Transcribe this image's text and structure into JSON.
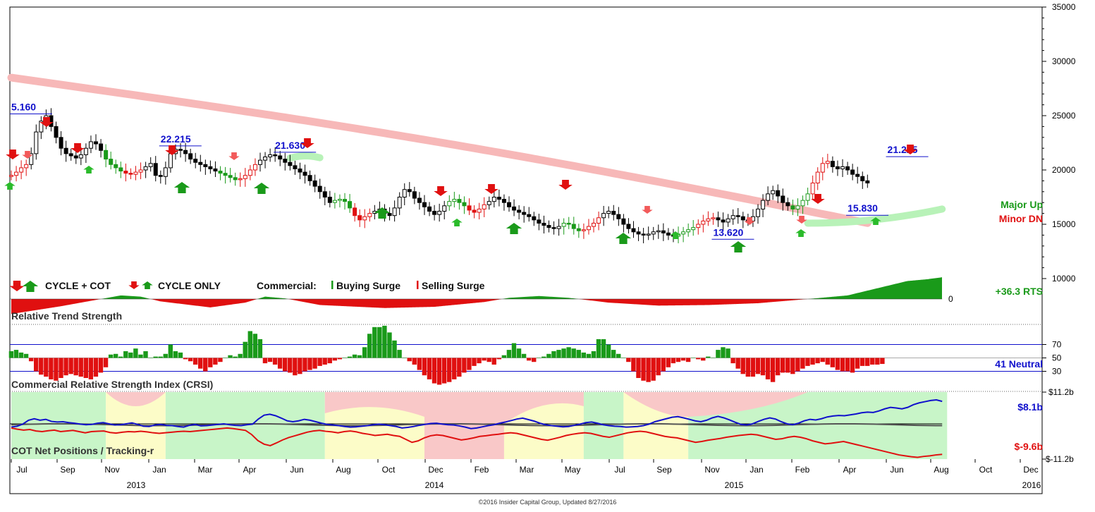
{
  "legend": {
    "cycle_cot": "CYCLE + COT",
    "cycle_only": "CYCLE ONLY",
    "commercial": "Commercial:",
    "buying_surge": "Buying Surge",
    "selling_surge": "Selling Surge"
  },
  "panels": {
    "rts_title": "Relative Trend Strength",
    "crsi_title": "Commercial Relative Strength Index (CRSI)",
    "cot_title": "COT Net Positions / Tracking-r"
  },
  "trend": {
    "major": "Major Up",
    "minor": "Minor DN"
  },
  "readouts": {
    "rts": "+36.3 RTS",
    "crsi": "41 Neutral",
    "cot_commercial": "$8.1b",
    "cot_large": "$-9.6b"
  },
  "footer": "©2016 Insider Capital Group, Updated 8/27/2016",
  "colors": {
    "up_green": "#1a9a1a",
    "down_red": "#e01010",
    "blue": "#1010cc",
    "ma_pink": "#f7b8b8",
    "ma_green": "#b8f2b8",
    "zone_green": "#c8f5c8",
    "zone_yellow": "#fcfcc8",
    "zone_pink": "#f9c8c8"
  },
  "chart_data": {
    "type": "candlestick",
    "y_axis": {
      "ticks": [
        10000,
        15000,
        20000,
        25000,
        30000,
        35000
      ],
      "range": [
        8000,
        35000
      ]
    },
    "x_axis": {
      "months": [
        "Jul",
        "Sep",
        "Nov",
        "Jan",
        "Mar",
        "Apr",
        "Jun",
        "Aug",
        "Oct",
        "Dec",
        "Feb",
        "Mar",
        "May",
        "Jul",
        "Sep",
        "Nov",
        "Jan",
        "Feb",
        "Apr",
        "Jun",
        "Aug",
        "Oct",
        "Dec"
      ],
      "years": [
        "2013",
        "2014",
        "2015",
        "2016"
      ]
    },
    "price_annotations": [
      {
        "label": "5.160",
        "week": 0,
        "value": 25160
      },
      {
        "label": "22.215",
        "week": 30,
        "value": 22215
      },
      {
        "label": "21.630",
        "week": 53,
        "value": 21630
      },
      {
        "label": "13.620",
        "week": 141,
        "value": 13620
      },
      {
        "label": "15.830",
        "week": 168,
        "value": 15830
      },
      {
        "label": "21.225",
        "week": 176,
        "value": 21225
      }
    ],
    "weekly_close": [
      19500,
      19800,
      20200,
      20500,
      21500,
      23500,
      24500,
      25000,
      24000,
      23000,
      22000,
      21500,
      21300,
      21100,
      21400,
      22000,
      22600,
      22400,
      21800,
      21000,
      20500,
      20200,
      19900,
      19700,
      19600,
      19800,
      20000,
      20300,
      20600,
      19500,
      19400,
      20200,
      21500,
      21900,
      21800,
      21500,
      21000,
      20700,
      20500,
      20300,
      20100,
      19900,
      19700,
      19500,
      19300,
      19100,
      19200,
      19500,
      20000,
      20500,
      20900,
      21200,
      21400,
      21300,
      21000,
      20700,
      20400,
      20100,
      19800,
      19500,
      19000,
      18500,
      18000,
      17500,
      17000,
      17200,
      17300,
      17100,
      16500,
      15800,
      15400,
      15700,
      16000,
      16200,
      16400,
      16000,
      15800,
      16500,
      17500,
      18200,
      18000,
      17400,
      17000,
      16600,
      16200,
      15900,
      16200,
      16700,
      17100,
      17300,
      17000,
      16700,
      16300,
      16100,
      16400,
      16800,
      17100,
      17500,
      17300,
      17000,
      16600,
      16300,
      16100,
      15900,
      15700,
      15400,
      15100,
      14900,
      14700,
      14600,
      14800,
      15100,
      15000,
      14600,
      14400,
      14500,
      14800,
      15100,
      15600,
      16000,
      16200,
      15900,
      15500,
      15000,
      14600,
      14300,
      14100,
      14000,
      14100,
      14300,
      14400,
      14200,
      14000,
      13900,
      14100,
      14300,
      14500,
      14700,
      15000,
      15300,
      15500,
      15600,
      15400,
      15200,
      15500,
      15800,
      15700,
      15400,
      15300,
      15700,
      16400,
      17200,
      17800,
      18100,
      17600,
      17000,
      16700,
      16400,
      16700,
      17200,
      17800,
      18800,
      19800,
      20600,
      20800,
      20300,
      20100,
      20300,
      20000,
      19600,
      19400,
      19000,
      18800
    ],
    "rts": [
      {
        "week": 0,
        "value": -25
      },
      {
        "week": 10,
        "value": -12
      },
      {
        "week": 18,
        "value": 0
      },
      {
        "week": 22,
        "value": 6
      },
      {
        "week": 26,
        "value": 4
      },
      {
        "week": 30,
        "value": -4
      },
      {
        "week": 40,
        "value": -14
      },
      {
        "week": 47,
        "value": -6
      },
      {
        "week": 51,
        "value": 4
      },
      {
        "week": 55,
        "value": 1
      },
      {
        "week": 62,
        "value": -10
      },
      {
        "week": 75,
        "value": -15
      },
      {
        "week": 85,
        "value": -13
      },
      {
        "week": 95,
        "value": -5
      },
      {
        "week": 100,
        "value": 2
      },
      {
        "week": 106,
        "value": 5
      },
      {
        "week": 112,
        "value": 2
      },
      {
        "week": 120,
        "value": -6
      },
      {
        "week": 130,
        "value": -11
      },
      {
        "week": 140,
        "value": -10
      },
      {
        "week": 150,
        "value": -7
      },
      {
        "week": 160,
        "value": 0
      },
      {
        "week": 168,
        "value": 6
      },
      {
        "week": 175,
        "value": 20
      },
      {
        "week": 180,
        "value": 30
      },
      {
        "week": 184,
        "value": 33
      },
      {
        "week": 187,
        "value": 36.3
      }
    ],
    "crsi": [
      60,
      62,
      58,
      56,
      45,
      30,
      25,
      22,
      18,
      16,
      20,
      24,
      26,
      24,
      22,
      20,
      18,
      22,
      28,
      36,
      55,
      56,
      52,
      60,
      58,
      64,
      55,
      60,
      50,
      52,
      52,
      56,
      70,
      60,
      58,
      48,
      45,
      40,
      34,
      30,
      36,
      40,
      44,
      50,
      54,
      52,
      56,
      74,
      90,
      86,
      78,
      42,
      44,
      40,
      34,
      30,
      28,
      24,
      26,
      30,
      32,
      34,
      38,
      40,
      42,
      46,
      48,
      50,
      52,
      55,
      54,
      66,
      86,
      96,
      96,
      98,
      88,
      76,
      62,
      50,
      45,
      40,
      32,
      24,
      18,
      12,
      10,
      12,
      14,
      18,
      22,
      28,
      32,
      38,
      42,
      46,
      44,
      40,
      48,
      54,
      62,
      72,
      64,
      56,
      46,
      44,
      50,
      52,
      56,
      60,
      62,
      64,
      66,
      64,
      62,
      58,
      56,
      60,
      78,
      78,
      70,
      62,
      56,
      50,
      44,
      30,
      20,
      16,
      14,
      16,
      24,
      30,
      36,
      42,
      44,
      46,
      44,
      50,
      48,
      46,
      52,
      50,
      62,
      66,
      64,
      42,
      34,
      26,
      22,
      22,
      26,
      24,
      18,
      14,
      24,
      28,
      28,
      26,
      30,
      34,
      38,
      40,
      42,
      44,
      40,
      36,
      32,
      30,
      30,
      28,
      34,
      38,
      38,
      40,
      40,
      41
    ],
    "crsi_levels": [
      70,
      50,
      30
    ],
    "cot_axis": {
      "top": "$11.2b",
      "bottom": "$-11.2b"
    },
    "cot_commercial": [
      -0.5,
      -0.2,
      0.5,
      1.8,
      2.3,
      1.8,
      2.1,
      1.4,
      1.2,
      1.3,
      1.0,
      0.8,
      0.5,
      0.3,
      0.4,
      0.8,
      1.0,
      0.6,
      0.2,
      0.3,
      0.6,
      0.9,
      0.4,
      -0.2,
      -0.3,
      0.2,
      0.4,
      0.1,
      0.0,
      -0.3,
      -0.5,
      0.1,
      0.4,
      -0.1,
      0.0,
      0.2,
      0.4,
      0.6,
      0.3,
      0.1,
      0.0,
      0.3,
      0.5,
      2.2,
      3.5,
      3.8,
      3.3,
      2.5,
      1.6,
      1.3,
      1.6,
      2.1,
      1.8,
      1.3,
      0.8,
      0.4,
      0.2,
      0.0,
      -0.3,
      -0.5,
      -0.4,
      -0.2,
      0.0,
      0.3,
      0.5,
      0.3,
      0.0,
      -0.3,
      -0.8,
      -0.6,
      -0.3,
      0.1,
      0.4,
      0.7,
      0.8,
      0.5,
      0.3,
      0.2,
      -0.1,
      -0.5,
      -1.0,
      -0.8,
      -0.4,
      0.0,
      0.3,
      0.8,
      1.2,
      1.7,
      2.2,
      2.5,
      2.0,
      1.5,
      0.8,
      0.3,
      0.0,
      -0.2,
      -0.4,
      -0.3,
      0.1,
      0.5,
      1.0,
      1.2,
      0.8,
      0.3,
      0.0,
      -0.2,
      -0.3,
      -0.5,
      -0.4,
      -0.3,
      0.0,
      0.5,
      1.3,
      1.8,
      2.3,
      2.8,
      3.0,
      2.6,
      2.1,
      1.6,
      1.3,
      1.8,
      2.6,
      3.1,
      2.6,
      1.9,
      1.1,
      0.4,
      0.2,
      0.6,
      1.4,
      2.1,
      2.6,
      2.2,
      1.3,
      0.6,
      0.3,
      0.8,
      1.6,
      2.1,
      1.9,
      2.3,
      2.9,
      3.2,
      3.4,
      3.3,
      3.6,
      3.9,
      4.3,
      4.5,
      4.4,
      4.9,
      5.6,
      6.1,
      5.9,
      5.6,
      6.1,
      7.0,
      7.6,
      8.0,
      8.4,
      8.6,
      8.1
    ],
    "cot_large": [
      -0.8,
      -1.2,
      -1.5,
      -1.3,
      -1.8,
      -2.0,
      -1.7,
      -1.5,
      -2.0,
      -1.8,
      -1.6,
      -2.0,
      -2.4,
      -2.0,
      -1.9,
      -1.8,
      -2.3,
      -2.5,
      -2.2,
      -2.0,
      -2.1,
      -1.9,
      -2.1,
      -2.4,
      -2.6,
      -2.4,
      -2.2,
      -2.0,
      -1.9,
      -2.0,
      -1.8,
      -1.6,
      -1.4,
      -1.2,
      -1.0,
      -0.8,
      -1.0,
      -1.3,
      -1.6,
      -3.0,
      -5.0,
      -6.2,
      -6.7,
      -5.8,
      -4.8,
      -4.0,
      -3.4,
      -2.8,
      -2.2,
      -1.8,
      -1.6,
      -1.9,
      -2.1,
      -2.4,
      -2.0,
      -1.8,
      -2.1,
      -2.6,
      -2.9,
      -3.3,
      -3.1,
      -2.9,
      -3.3,
      -3.6,
      -4.6,
      -5.6,
      -5.1,
      -4.1,
      -3.4,
      -3.1,
      -3.3,
      -3.8,
      -4.3,
      -4.8,
      -4.5,
      -4.1,
      -3.6,
      -3.4,
      -3.1,
      -2.9,
      -2.6,
      -2.4,
      -2.6,
      -3.1,
      -3.6,
      -4.1,
      -4.6,
      -4.9,
      -4.4,
      -3.9,
      -3.3,
      -2.9,
      -2.6,
      -2.4,
      -2.6,
      -3.1,
      -3.6,
      -3.9,
      -3.4,
      -2.9,
      -2.4,
      -2.1,
      -1.9,
      -2.1,
      -2.6,
      -3.1,
      -3.6,
      -3.9,
      -4.1,
      -4.6,
      -5.1,
      -5.6,
      -5.3,
      -4.9,
      -4.6,
      -4.3,
      -3.9,
      -3.6,
      -3.3,
      -3.1,
      -2.9,
      -3.1,
      -3.6,
      -4.1,
      -4.6,
      -4.4,
      -3.9,
      -3.6,
      -3.9,
      -4.4,
      -5.1,
      -5.6,
      -6.1,
      -5.9,
      -5.6,
      -5.3,
      -5.8,
      -6.3,
      -6.8,
      -7.3,
      -7.8,
      -8.3,
      -8.8,
      -9.3,
      -9.8,
      -10.1,
      -10.4,
      -10.6,
      -10.3,
      -10.1,
      -9.8,
      -9.6
    ],
    "cot_zones": [
      {
        "from": 0,
        "to": 19,
        "zone": "green"
      },
      {
        "from": 19,
        "to": 31,
        "zone": "yellow"
      },
      {
        "from": 31,
        "to": 63,
        "zone": "green"
      },
      {
        "from": 63,
        "to": 83,
        "zone": "yellow"
      },
      {
        "from": 83,
        "to": 99,
        "zone": "pink"
      },
      {
        "from": 99,
        "to": 115,
        "zone": "yellow"
      },
      {
        "from": 115,
        "to": 123,
        "zone": "green"
      },
      {
        "from": 123,
        "to": 136,
        "zone": "yellow"
      },
      {
        "from": 136,
        "to": 188,
        "zone": "green"
      }
    ]
  }
}
